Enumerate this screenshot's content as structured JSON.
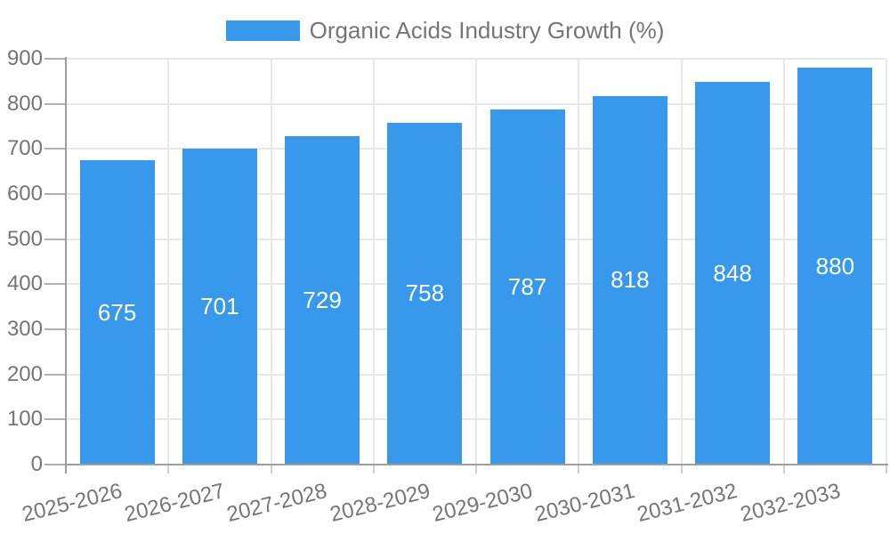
{
  "legend": {
    "label": "Organic Acids Industry Growth (%)"
  },
  "colors": {
    "bar": "#3898ec",
    "bar_value_text": "#ffffff",
    "axis_text": "#757575",
    "legend_text": "#757575",
    "grid_line": "#e7e7e7",
    "axis_line": "#9e9e9e",
    "y_tick_mark": "#b0b0b0",
    "x_tick_mark": "#cfcfcf",
    "background": "#ffffff"
  },
  "chart_data": {
    "type": "bar",
    "title": "Organic Acids Industry Growth (%)",
    "categories": [
      "2025-2026",
      "2026-2027",
      "2027-2028",
      "2028-2029",
      "2029-2030",
      "2030-2031",
      "2031-2032",
      "2032-2033"
    ],
    "values": [
      675,
      701,
      729,
      758,
      787,
      818,
      848,
      880
    ],
    "xlabel": "",
    "ylabel": "",
    "ylim": [
      0,
      900
    ],
    "yticks": [
      0,
      100,
      200,
      300,
      400,
      500,
      600,
      700,
      800,
      900
    ],
    "grid": true,
    "legend_position": "top-center",
    "value_labels_position": "inside-center",
    "x_label_rotation_deg": -14
  }
}
